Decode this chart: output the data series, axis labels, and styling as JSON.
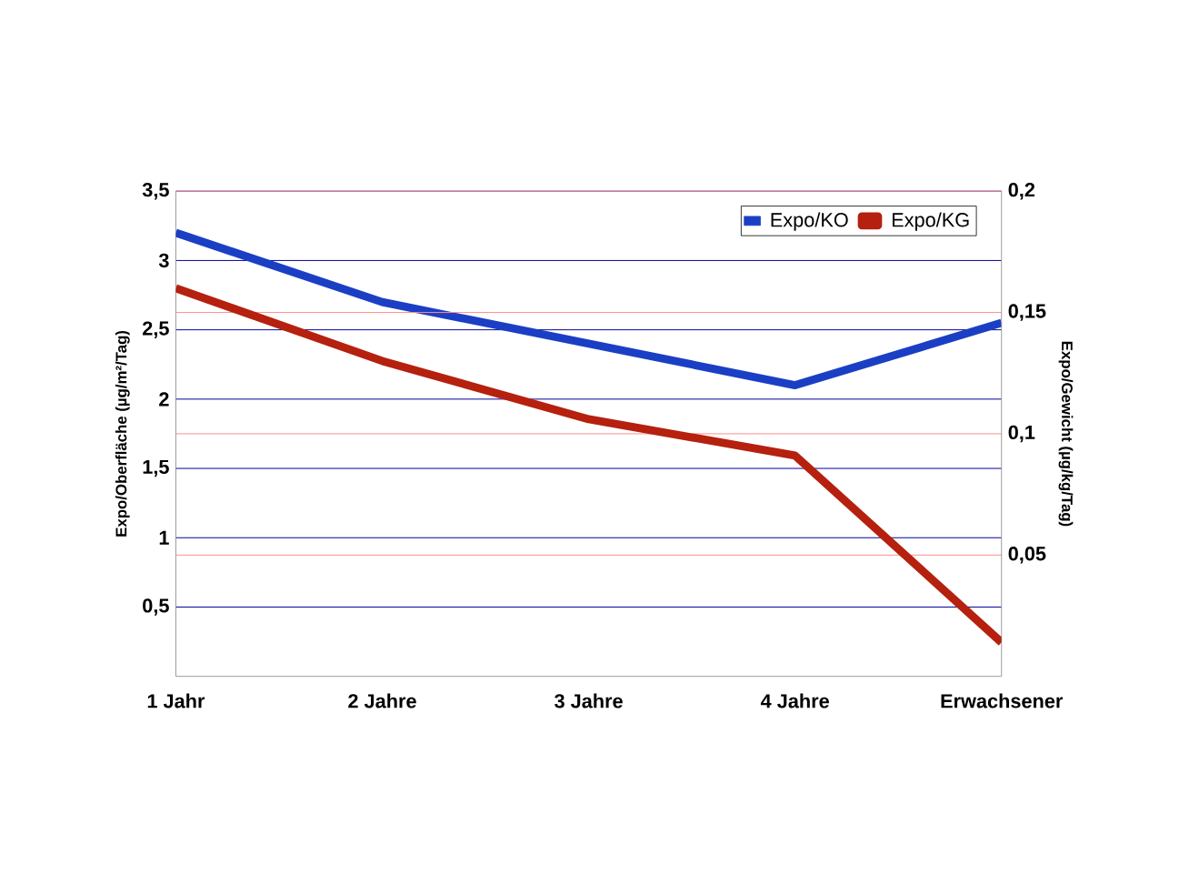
{
  "chart_data": {
    "type": "line",
    "categories": [
      "1 Jahr",
      "2 Jahre",
      "3 Jahre",
      "4 Jahre",
      "Erwachsener"
    ],
    "series": [
      {
        "name": "Expo/KO",
        "color": "#1b3fc4",
        "values": [
          3.2,
          2.7,
          2.4,
          2.1,
          2.55
        ]
      },
      {
        "name": "Expo/KG",
        "color": "#b5200f",
        "axis": "y2",
        "values": [
          0.16,
          0.13,
          0.106,
          0.091,
          0.014
        ]
      }
    ],
    "ylabel": "Expo/Oberfläche (µg/m²/Tag)",
    "y2label": "Expo/Gewicht (µg/kg/Tag)",
    "ylim": [
      0,
      3.5
    ],
    "yticks": [
      {
        "value": 0.5,
        "label": "0,5"
      },
      1,
      {
        "value": 1.5,
        "label": "1,5"
      },
      2,
      {
        "value": 2.5,
        "label": "2,5"
      },
      3,
      {
        "value": 3.5,
        "label": "3,5"
      }
    ],
    "y2lim": [
      0,
      0.2
    ],
    "y2ticks": [
      {
        "value": 0.05,
        "label": "0,05"
      },
      {
        "value": 0.1,
        "label": "0,1"
      },
      {
        "value": 0.15,
        "label": "0,15"
      },
      {
        "value": 0.2,
        "label": "0,2"
      }
    ],
    "grid": true,
    "legend": "top right",
    "line_style": "solid"
  }
}
